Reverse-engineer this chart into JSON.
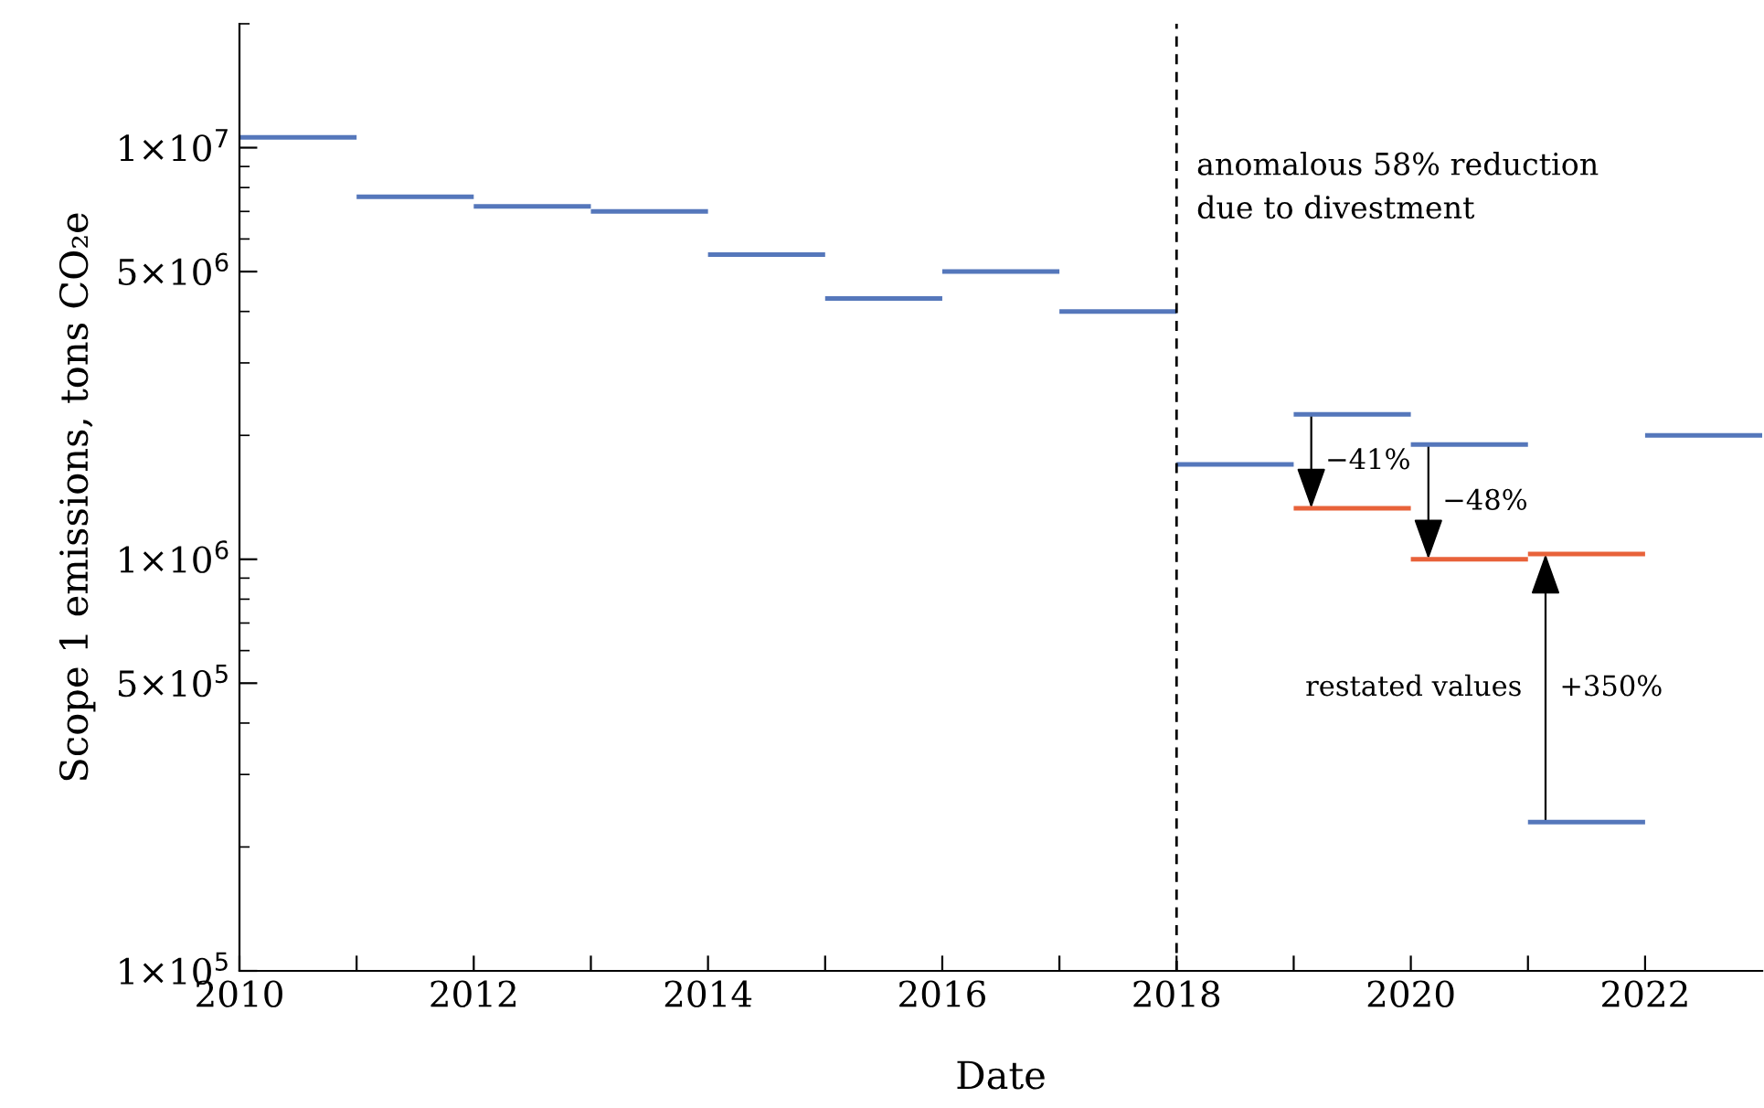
{
  "chart_data": {
    "type": "line",
    "xlabel": "Date",
    "ylabel": "Scope 1 emissions, tons CO₂e",
    "series": [
      {
        "color": "#5577bb",
        "x": [
          2010,
          2011
        ],
        "values": [
          10600000,
          10600000
        ]
      },
      {
        "color": "#5577bb",
        "x": [
          2011,
          2012
        ],
        "values": [
          7600000,
          7600000
        ]
      },
      {
        "color": "#5577bb",
        "x": [
          2012,
          2013
        ],
        "values": [
          7200000,
          7200000
        ]
      },
      {
        "color": "#5577bb",
        "x": [
          2013,
          2014
        ],
        "values": [
          7000000,
          7000000
        ]
      },
      {
        "color": "#5577bb",
        "x": [
          2014,
          2015
        ],
        "values": [
          5500000,
          5500000
        ]
      },
      {
        "color": "#5577bb",
        "x": [
          2015,
          2016
        ],
        "values": [
          4300000,
          4300000
        ]
      },
      {
        "color": "#5577bb",
        "x": [
          2016,
          2017
        ],
        "values": [
          5000000,
          5000000
        ]
      },
      {
        "color": "#5577bb",
        "x": [
          2017,
          2018
        ],
        "values": [
          4000000,
          4000000
        ]
      },
      {
        "color": "#5577bb",
        "x": [
          2018,
          2019
        ],
        "values": [
          1700000,
          1700000
        ]
      },
      {
        "color": "#5577bb",
        "x": [
          2019,
          2020
        ],
        "values": [
          2250000,
          2250000
        ]
      },
      {
        "color": "#5577bb",
        "x": [
          2020,
          2021
        ],
        "values": [
          1900000,
          1900000
        ]
      },
      {
        "color": "#5577bb",
        "x": [
          2021,
          2022
        ],
        "values": [
          230000,
          230000
        ]
      },
      {
        "color": "#5577bb",
        "x": [
          2022,
          2023
        ],
        "values": [
          2000000,
          2000000
        ]
      },
      {
        "color": "#e8623a",
        "x": [
          2019,
          2020
        ],
        "values": [
          1330000,
          1330000
        ]
      },
      {
        "color": "#e8623a",
        "x": [
          2020,
          2021
        ],
        "values": [
          1000000,
          1000000
        ]
      },
      {
        "color": "#e8623a",
        "x": [
          2021,
          2022
        ],
        "values": [
          1030000,
          1030000
        ]
      }
    ],
    "log": "y",
    "xlim": [
      2010,
      2023
    ],
    "ylim": [
      100000,
      20000000
    ],
    "xticks": [
      2010,
      {
        "value": 2011,
        "label": null
      },
      2012,
      {
        "value": 2013,
        "label": null
      },
      2014,
      {
        "value": 2015,
        "label": null
      },
      2016,
      {
        "value": 2017,
        "label": null
      },
      2018,
      {
        "value": 2019,
        "label": null
      },
      2020,
      {
        "value": 2021,
        "label": null
      },
      2022
    ],
    "yticks": [
      {
        "value": 100000,
        "label": "1×10$^{5}$"
      },
      {
        "value": 500000,
        "label": "5×10$^{5}$"
      },
      {
        "value": 1000000,
        "label": "1×10$^{6}$"
      },
      {
        "value": 5000000,
        "label": "5×10$^{6}$"
      },
      {
        "value": 10000000,
        "label": "1×10$^{7}$"
      }
    ],
    "ref_lines": [
      {
        "axis": "x",
        "value": 2018,
        "label": "anomalous 58% reduction\ndue to divestment",
        "color": "#000000",
        "line_style": "dashed"
      }
    ],
    "annotations": [
      {
        "text": "−41%",
        "x": 2019.15,
        "y": 1330000
      },
      {
        "text": "−48%",
        "x": 2020.15,
        "y": 1000000
      },
      "+350%",
      "restated values"
    ],
    "grid": false,
    "legend": false
  }
}
